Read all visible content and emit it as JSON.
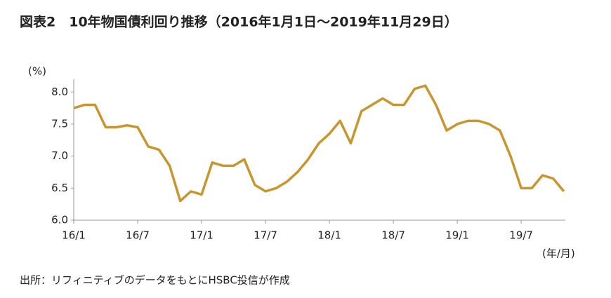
{
  "chart_data": {
    "type": "line",
    "title": "図表2　10年物国債利回り推移（2016年1月1日～2019年11月29日）",
    "y_label": "(%)",
    "x_label": "(年/月)",
    "source": "出所：リフィニティブのデータをもとにHSBC投信が作成",
    "categories": [
      "16/1",
      null,
      null,
      null,
      null,
      null,
      "16/7",
      null,
      null,
      null,
      null,
      null,
      "17/1",
      null,
      null,
      null,
      null,
      null,
      "17/7",
      null,
      null,
      null,
      null,
      null,
      "18/1",
      null,
      null,
      null,
      null,
      null,
      "18/7",
      null,
      null,
      null,
      null,
      null,
      "19/1",
      null,
      null,
      null,
      null,
      null,
      "19/7",
      null,
      null,
      null,
      null
    ],
    "series": [
      {
        "name": "10年物国債利回り",
        "color": "#c9962e",
        "values": [
          7.75,
          7.8,
          7.8,
          7.45,
          7.45,
          7.48,
          7.45,
          7.15,
          7.1,
          6.85,
          6.3,
          6.45,
          6.4,
          6.9,
          6.85,
          6.85,
          6.95,
          6.55,
          6.45,
          6.5,
          6.6,
          6.75,
          6.95,
          7.2,
          7.35,
          7.55,
          7.2,
          7.7,
          7.8,
          7.9,
          7.8,
          7.8,
          8.05,
          8.1,
          7.8,
          7.4,
          7.5,
          7.55,
          7.55,
          7.5,
          7.4,
          7.0,
          6.5,
          6.5,
          6.7,
          6.65,
          6.45
        ]
      }
    ],
    "ylim": [
      6.0,
      8.2
    ],
    "yticks": [
      {
        "value": 6,
        "label": "6.0"
      },
      {
        "value": 6.5,
        "label": "6.5"
      },
      {
        "value": 7,
        "label": "7.0"
      },
      {
        "value": 7.5,
        "label": "7.5"
      },
      {
        "value": 8,
        "label": "8.0"
      }
    ],
    "grid": false
  }
}
